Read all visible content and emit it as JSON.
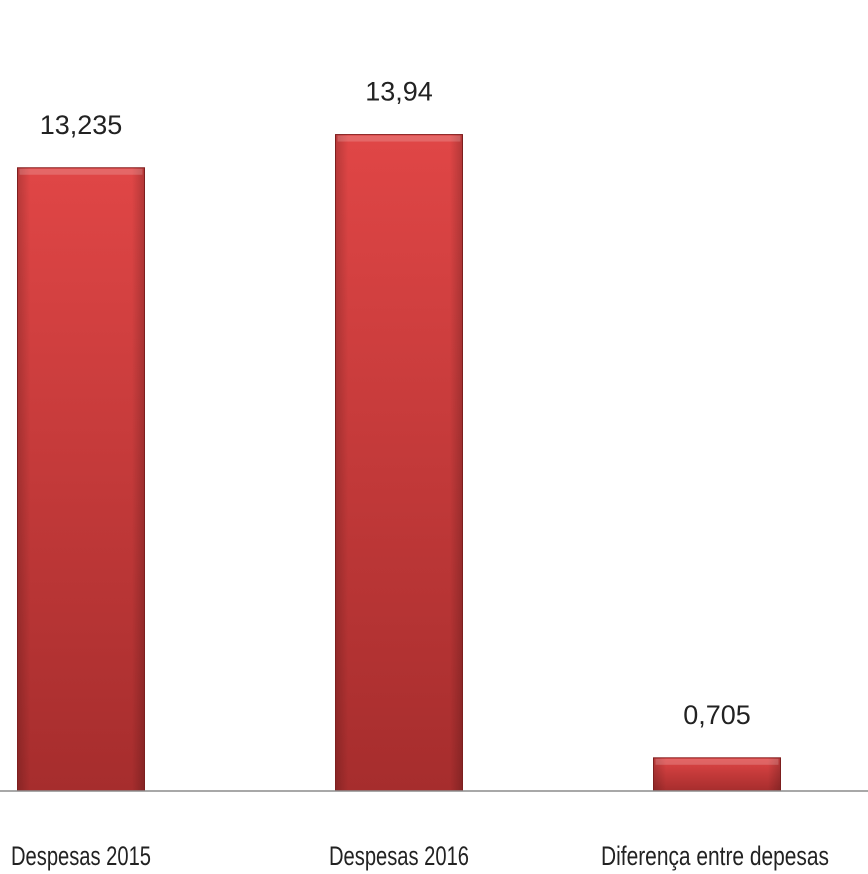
{
  "chart_data": {
    "type": "bar",
    "categories": [
      "Despesas 2015",
      "Despesas 2016",
      "Diferença entre depesas"
    ],
    "values": [
      13.235,
      13.94,
      0.705
    ],
    "value_labels": [
      "13,235",
      "13,94",
      "0,705"
    ],
    "title": "",
    "xlabel": "",
    "ylabel": "",
    "ylim": [
      0,
      16.5
    ],
    "grid": false,
    "legend": "none",
    "colors": {
      "bar_top": "#e04646",
      "bar_bottom": "#a62d2d",
      "bar_edge": "#8a2222",
      "axis": "#8c8c8c"
    }
  }
}
